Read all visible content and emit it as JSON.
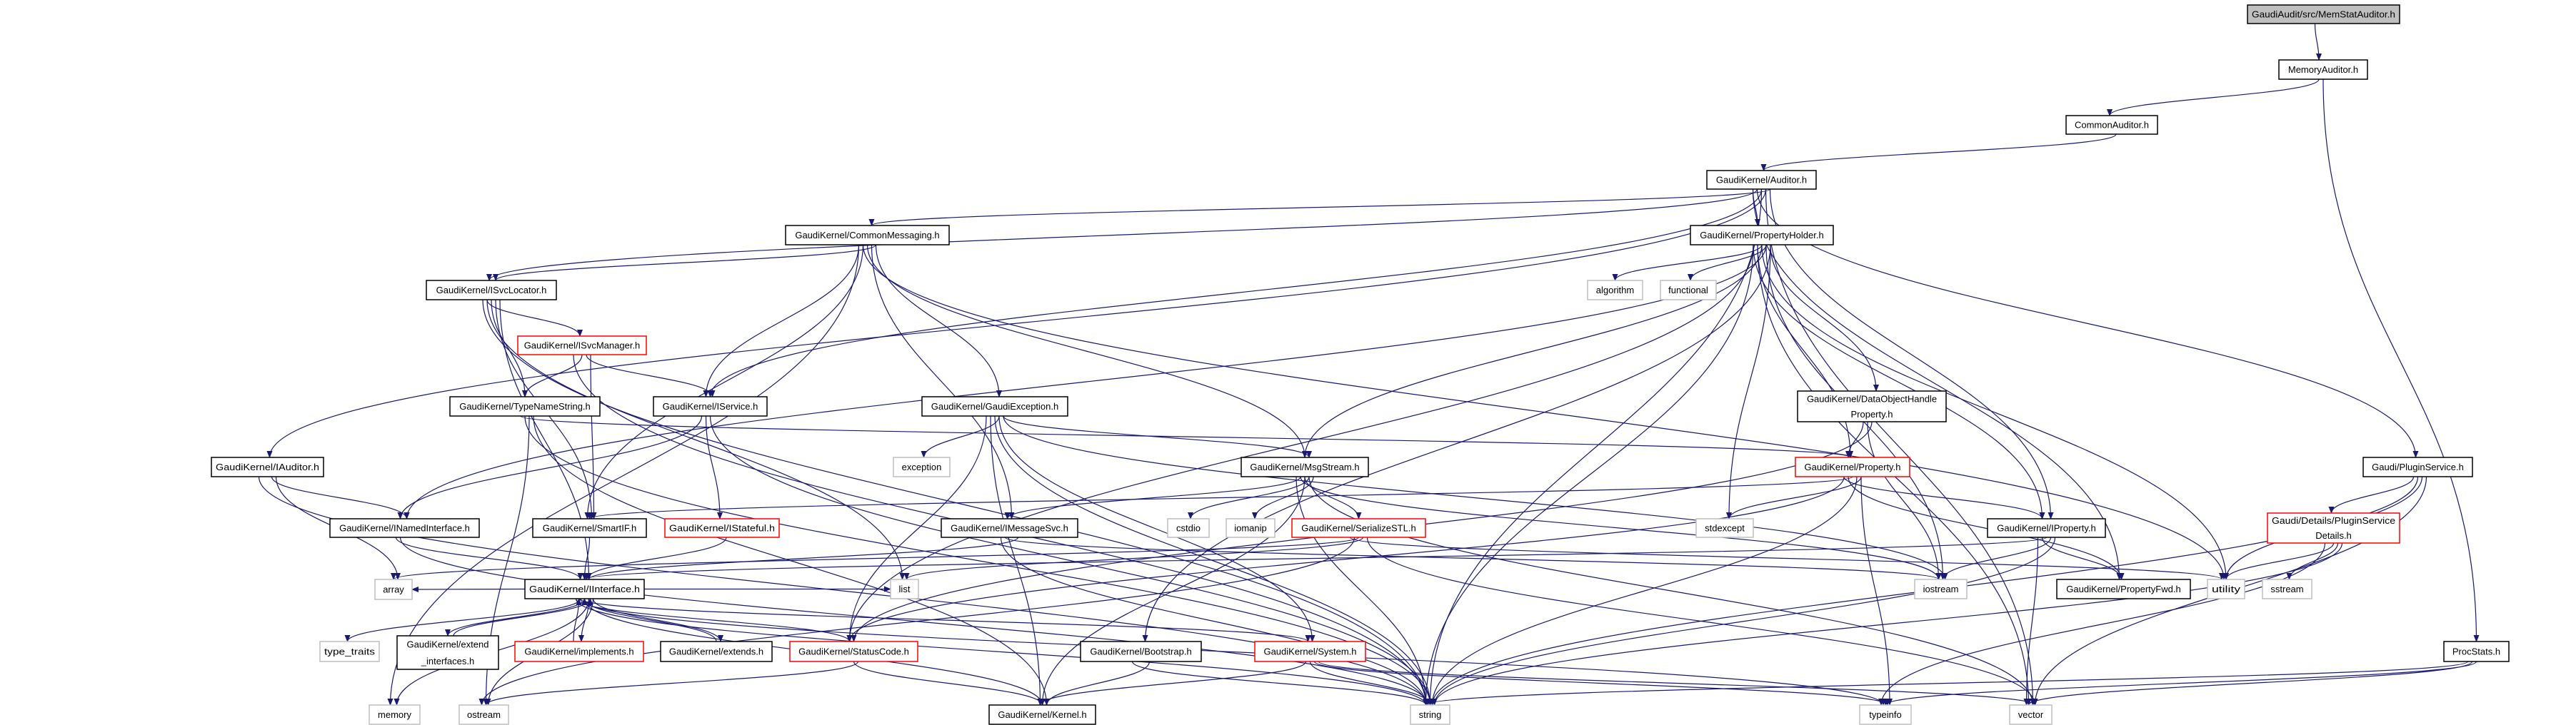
{
  "colors": {
    "edge": "#191970",
    "node_border": "#000000",
    "truncated_border": "#ff0000",
    "external_border": "#bfbfbf",
    "root_fill": "#bfbfbf",
    "node_fill": "#ffffff"
  },
  "nodes": [
    {
      "lines": [
        "GaudiAudit/src/MemStatAuditor.h"
      ],
      "kind": "root"
    },
    {
      "lines": [
        "MemoryAuditor.h"
      ],
      "kind": "normal"
    },
    {
      "lines": [
        "CommonAuditor.h"
      ],
      "kind": "normal"
    },
    {
      "lines": [
        "GaudiKernel/Auditor.h"
      ],
      "kind": "normal"
    },
    {
      "lines": [
        "GaudiKernel/CommonMessaging.h"
      ],
      "kind": "normal"
    },
    {
      "lines": [
        "GaudiKernel/PropertyHolder.h"
      ],
      "kind": "normal"
    },
    {
      "lines": [
        "GaudiKernel/ISvcLocator.h"
      ],
      "kind": "normal"
    },
    {
      "lines": [
        "algorithm"
      ],
      "kind": "external"
    },
    {
      "lines": [
        "functional"
      ],
      "kind": "external"
    },
    {
      "lines": [
        "GaudiKernel/ISvcManager.h"
      ],
      "kind": "truncated"
    },
    {
      "lines": [
        "GaudiKernel/TypeNameString.h"
      ],
      "kind": "normal"
    },
    {
      "lines": [
        "GaudiKernel/IService.h"
      ],
      "kind": "normal"
    },
    {
      "lines": [
        "GaudiKernel/GaudiException.h"
      ],
      "kind": "normal"
    },
    {
      "lines": [
        "GaudiKernel/DataObjectHandle",
        "Property.h"
      ],
      "kind": "normal"
    },
    {
      "lines": [
        "GaudiKernel/IAuditor.h"
      ],
      "kind": "normal"
    },
    {
      "lines": [
        "exception"
      ],
      "kind": "external"
    },
    {
      "lines": [
        "GaudiKernel/MsgStream.h"
      ],
      "kind": "normal"
    },
    {
      "lines": [
        "GaudiKernel/Property.h"
      ],
      "kind": "truncated"
    },
    {
      "lines": [
        "Gaudi/PluginService.h"
      ],
      "kind": "normal"
    },
    {
      "lines": [
        "GaudiKernel/INamedInterface.h"
      ],
      "kind": "normal"
    },
    {
      "lines": [
        "GaudiKernel/SmartIF.h"
      ],
      "kind": "normal"
    },
    {
      "lines": [
        "GaudiKernel/IStateful.h"
      ],
      "kind": "truncated"
    },
    {
      "lines": [
        "GaudiKernel/IMessageSvc.h"
      ],
      "kind": "normal"
    },
    {
      "lines": [
        "cstdio"
      ],
      "kind": "external"
    },
    {
      "lines": [
        "iomanip"
      ],
      "kind": "external"
    },
    {
      "lines": [
        "GaudiKernel/SerializeSTL.h"
      ],
      "kind": "truncated"
    },
    {
      "lines": [
        "stdexcept"
      ],
      "kind": "external"
    },
    {
      "lines": [
        "GaudiKernel/IProperty.h"
      ],
      "kind": "normal"
    },
    {
      "lines": [
        "Gaudi/Details/PluginService",
        "Details.h"
      ],
      "kind": "truncated"
    },
    {
      "lines": [
        "array"
      ],
      "kind": "external"
    },
    {
      "lines": [
        "GaudiKernel/IInterface.h"
      ],
      "kind": "normal"
    },
    {
      "lines": [
        "list"
      ],
      "kind": "external"
    },
    {
      "lines": [
        "iostream"
      ],
      "kind": "external"
    },
    {
      "lines": [
        "GaudiKernel/PropertyFwd.h"
      ],
      "kind": "normal"
    },
    {
      "lines": [
        "utility"
      ],
      "kind": "external"
    },
    {
      "lines": [
        "sstream"
      ],
      "kind": "external"
    },
    {
      "lines": [
        "type_traits"
      ],
      "kind": "external"
    },
    {
      "lines": [
        "GaudiKernel/extend",
        "_interfaces.h"
      ],
      "kind": "normal"
    },
    {
      "lines": [
        "GaudiKernel/implements.h"
      ],
      "kind": "truncated"
    },
    {
      "lines": [
        "GaudiKernel/extends.h"
      ],
      "kind": "normal"
    },
    {
      "lines": [
        "GaudiKernel/StatusCode.h"
      ],
      "kind": "truncated"
    },
    {
      "lines": [
        "GaudiKernel/Bootstrap.h"
      ],
      "kind": "normal"
    },
    {
      "lines": [
        "GaudiKernel/System.h"
      ],
      "kind": "truncated"
    },
    {
      "lines": [
        "ProcStats.h"
      ],
      "kind": "normal"
    },
    {
      "lines": [
        "memory"
      ],
      "kind": "external"
    },
    {
      "lines": [
        "ostream"
      ],
      "kind": "external"
    },
    {
      "lines": [
        "GaudiKernel/Kernel.h"
      ],
      "kind": "normal"
    },
    {
      "lines": [
        "string"
      ],
      "kind": "external"
    },
    {
      "lines": [
        "typeinfo"
      ],
      "kind": "external"
    },
    {
      "lines": [
        "vector"
      ],
      "kind": "external"
    }
  ],
  "edges": [
    [
      0,
      1
    ],
    [
      1,
      2
    ],
    [
      1,
      43
    ],
    [
      2,
      3
    ],
    [
      3,
      4
    ],
    [
      3,
      5
    ],
    [
      3,
      6
    ],
    [
      3,
      11
    ],
    [
      3,
      14
    ],
    [
      3,
      27
    ],
    [
      3,
      33
    ],
    [
      3,
      18
    ],
    [
      3,
      47
    ],
    [
      3,
      49
    ],
    [
      4,
      6
    ],
    [
      4,
      11
    ],
    [
      4,
      20
    ],
    [
      4,
      16
    ],
    [
      4,
      22
    ],
    [
      4,
      12
    ],
    [
      4,
      44
    ],
    [
      4,
      34
    ],
    [
      5,
      7
    ],
    [
      5,
      8
    ],
    [
      5,
      13
    ],
    [
      5,
      27
    ],
    [
      5,
      17
    ],
    [
      5,
      16
    ],
    [
      5,
      19
    ],
    [
      5,
      26
    ],
    [
      5,
      47
    ],
    [
      5,
      49
    ],
    [
      5,
      34
    ],
    [
      5,
      32
    ],
    [
      5,
      41
    ],
    [
      5,
      40
    ],
    [
      6,
      9
    ],
    [
      6,
      10
    ],
    [
      6,
      20
    ],
    [
      6,
      30
    ],
    [
      6,
      47
    ],
    [
      6,
      31
    ],
    [
      9,
      10
    ],
    [
      9,
      11
    ],
    [
      9,
      20
    ],
    [
      9,
      47
    ],
    [
      10,
      17
    ],
    [
      10,
      47
    ],
    [
      10,
      45
    ],
    [
      10,
      46
    ],
    [
      11,
      19
    ],
    [
      11,
      21
    ],
    [
      11,
      47
    ],
    [
      12,
      15
    ],
    [
      12,
      16
    ],
    [
      12,
      40
    ],
    [
      12,
      46
    ],
    [
      12,
      47
    ],
    [
      12,
      42
    ],
    [
      12,
      32
    ],
    [
      13,
      17
    ],
    [
      13,
      32
    ],
    [
      13,
      40
    ],
    [
      14,
      19
    ],
    [
      14,
      29
    ],
    [
      14,
      47
    ],
    [
      16,
      22
    ],
    [
      16,
      25
    ],
    [
      16,
      23
    ],
    [
      16,
      24
    ],
    [
      16,
      47
    ],
    [
      16,
      32
    ],
    [
      16,
      46
    ],
    [
      16,
      49
    ],
    [
      17,
      26
    ],
    [
      17,
      27
    ],
    [
      17,
      33
    ],
    [
      17,
      20
    ],
    [
      17,
      47
    ],
    [
      17,
      48
    ],
    [
      17,
      40
    ],
    [
      18,
      28
    ],
    [
      18,
      34
    ],
    [
      18,
      47
    ],
    [
      18,
      49
    ],
    [
      19,
      30
    ],
    [
      19,
      47
    ],
    [
      20,
      30
    ],
    [
      21,
      30
    ],
    [
      22,
      30
    ],
    [
      22,
      47
    ],
    [
      22,
      32
    ],
    [
      25,
      29
    ],
    [
      25,
      31
    ],
    [
      25,
      49
    ],
    [
      25,
      34
    ],
    [
      25,
      45
    ],
    [
      27,
      30
    ],
    [
      27,
      32
    ],
    [
      27,
      47
    ],
    [
      27,
      49
    ],
    [
      27,
      33
    ],
    [
      28,
      34
    ],
    [
      28,
      35
    ],
    [
      28,
      47
    ],
    [
      28,
      48
    ],
    [
      30,
      36
    ],
    [
      30,
      37
    ],
    [
      30,
      38
    ],
    [
      30,
      39
    ],
    [
      30,
      40
    ],
    [
      30,
      42
    ],
    [
      30,
      46
    ],
    [
      30,
      44
    ],
    [
      30,
      45
    ],
    [
      30,
      47
    ],
    [
      30,
      48
    ],
    [
      30,
      29
    ],
    [
      30,
      31
    ],
    [
      37,
      30
    ],
    [
      38,
      30
    ],
    [
      39,
      30
    ],
    [
      40,
      46
    ],
    [
      40,
      45
    ],
    [
      41,
      46
    ],
    [
      41,
      47
    ],
    [
      42,
      46
    ],
    [
      42,
      47
    ],
    [
      42,
      48
    ],
    [
      42,
      49
    ],
    [
      43,
      47
    ],
    [
      43,
      49
    ],
    [
      43,
      48
    ]
  ]
}
